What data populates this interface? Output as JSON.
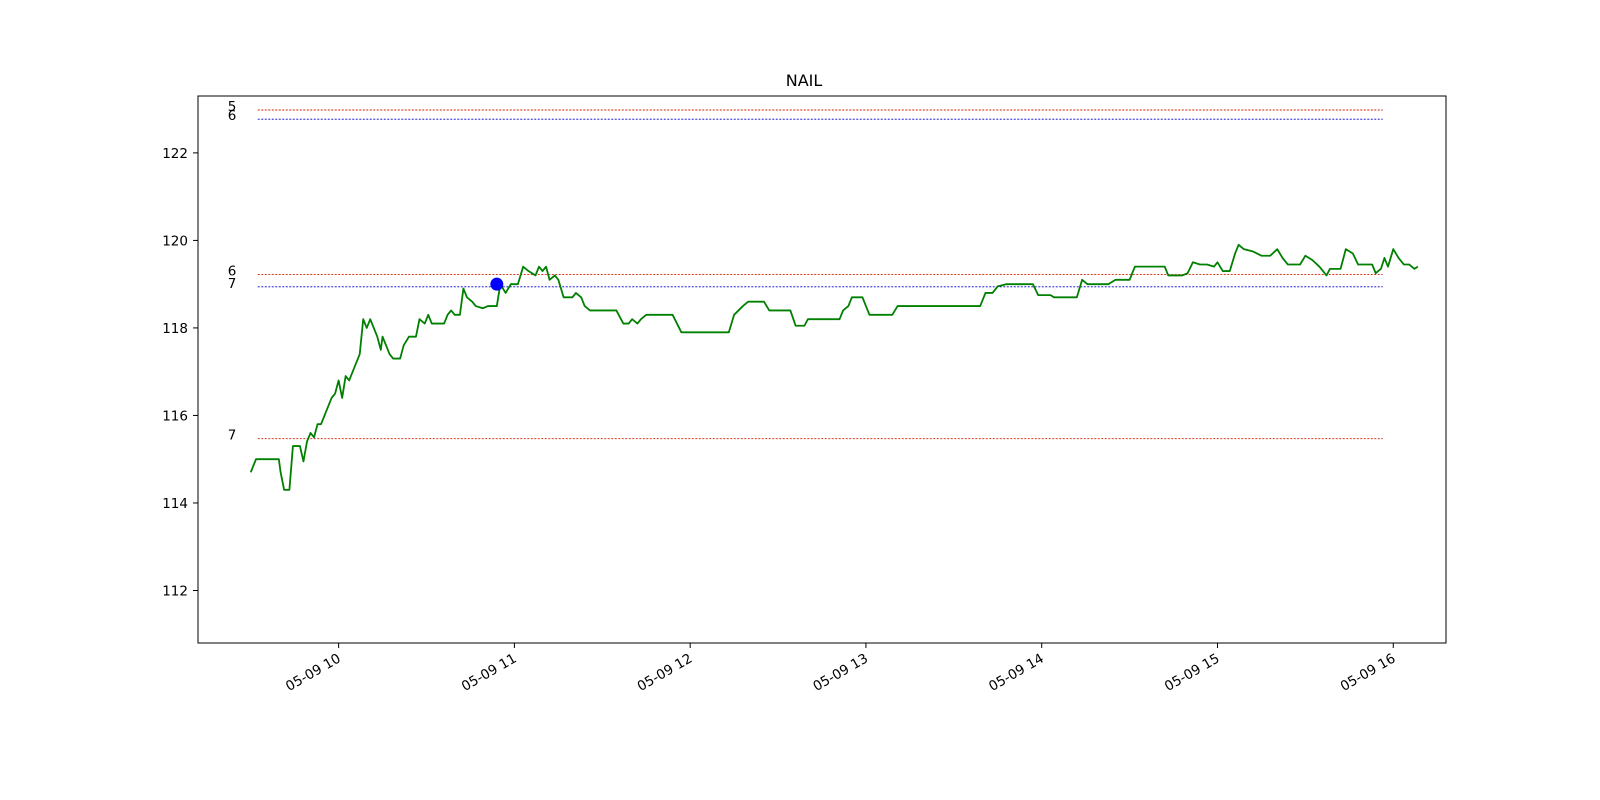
{
  "chart_data": {
    "type": "line",
    "title": "NAIL",
    "xlabel": "",
    "ylabel": "",
    "date": "05-09",
    "x_range_hours": [
      9.2,
      16.3
    ],
    "ylim": [
      110.8,
      123.3
    ],
    "yticks": [
      112,
      114,
      116,
      118,
      120,
      122
    ],
    "xticks": [
      {
        "hour": 10,
        "label": "05-09 10"
      },
      {
        "hour": 11,
        "label": "05-09 11"
      },
      {
        "hour": 12,
        "label": "05-09 12"
      },
      {
        "hour": 13,
        "label": "05-09 13"
      },
      {
        "hour": 14,
        "label": "05-09 14"
      },
      {
        "hour": 15,
        "label": "05-09 15"
      },
      {
        "hour": 16,
        "label": "05-09 16"
      }
    ],
    "grid": false,
    "series": [
      {
        "color": "#008000",
        "points": [
          [
            9.5,
            114.7
          ],
          [
            9.53,
            115.0
          ],
          [
            9.58,
            115.0
          ],
          [
            9.63,
            115.0
          ],
          [
            9.66,
            115.0
          ],
          [
            9.67,
            114.7
          ],
          [
            9.69,
            114.3
          ],
          [
            9.72,
            114.3
          ],
          [
            9.74,
            115.3
          ],
          [
            9.78,
            115.3
          ],
          [
            9.8,
            114.95
          ],
          [
            9.82,
            115.4
          ],
          [
            9.84,
            115.6
          ],
          [
            9.86,
            115.5
          ],
          [
            9.88,
            115.8
          ],
          [
            9.9,
            115.8
          ],
          [
            9.92,
            116.0
          ],
          [
            9.94,
            116.2
          ],
          [
            9.96,
            116.4
          ],
          [
            9.98,
            116.5
          ],
          [
            10.0,
            116.8
          ],
          [
            10.02,
            116.4
          ],
          [
            10.04,
            116.9
          ],
          [
            10.06,
            116.8
          ],
          [
            10.08,
            117.0
          ],
          [
            10.1,
            117.2
          ],
          [
            10.12,
            117.4
          ],
          [
            10.14,
            118.2
          ],
          [
            10.16,
            118.0
          ],
          [
            10.18,
            118.2
          ],
          [
            10.2,
            118.0
          ],
          [
            10.22,
            117.8
          ],
          [
            10.24,
            117.5
          ],
          [
            10.25,
            117.8
          ],
          [
            10.27,
            117.6
          ],
          [
            10.29,
            117.4
          ],
          [
            10.31,
            117.3
          ],
          [
            10.35,
            117.3
          ],
          [
            10.37,
            117.6
          ],
          [
            10.4,
            117.8
          ],
          [
            10.44,
            117.8
          ],
          [
            10.46,
            118.2
          ],
          [
            10.49,
            118.1
          ],
          [
            10.51,
            118.3
          ],
          [
            10.53,
            118.1
          ],
          [
            10.57,
            118.1
          ],
          [
            10.6,
            118.1
          ],
          [
            10.62,
            118.3
          ],
          [
            10.64,
            118.4
          ],
          [
            10.66,
            118.3
          ],
          [
            10.69,
            118.3
          ],
          [
            10.71,
            118.9
          ],
          [
            10.73,
            118.7
          ],
          [
            10.76,
            118.6
          ],
          [
            10.78,
            118.5
          ],
          [
            10.82,
            118.45
          ],
          [
            10.85,
            118.5
          ],
          [
            10.9,
            118.5
          ],
          [
            10.92,
            119.0
          ],
          [
            10.95,
            118.8
          ],
          [
            10.98,
            119.0
          ],
          [
            11.02,
            119.0
          ],
          [
            11.05,
            119.4
          ],
          [
            11.08,
            119.3
          ],
          [
            11.12,
            119.2
          ],
          [
            11.14,
            119.4
          ],
          [
            11.16,
            119.3
          ],
          [
            11.18,
            119.4
          ],
          [
            11.2,
            119.1
          ],
          [
            11.23,
            119.2
          ],
          [
            11.25,
            119.1
          ],
          [
            11.28,
            118.7
          ],
          [
            11.33,
            118.7
          ],
          [
            11.35,
            118.8
          ],
          [
            11.38,
            118.7
          ],
          [
            11.4,
            118.5
          ],
          [
            11.43,
            118.4
          ],
          [
            11.48,
            118.4
          ],
          [
            11.58,
            118.4
          ],
          [
            11.62,
            118.1
          ],
          [
            11.65,
            118.1
          ],
          [
            11.67,
            118.2
          ],
          [
            11.7,
            118.1
          ],
          [
            11.72,
            118.2
          ],
          [
            11.75,
            118.3
          ],
          [
            11.9,
            118.3
          ],
          [
            11.95,
            117.9
          ],
          [
            12.07,
            117.9
          ],
          [
            12.1,
            117.9
          ],
          [
            12.22,
            117.9
          ],
          [
            12.25,
            118.3
          ],
          [
            12.3,
            118.5
          ],
          [
            12.33,
            118.6
          ],
          [
            12.42,
            118.6
          ],
          [
            12.45,
            118.4
          ],
          [
            12.57,
            118.4
          ],
          [
            12.6,
            118.05
          ],
          [
            12.65,
            118.05
          ],
          [
            12.67,
            118.2
          ],
          [
            12.85,
            118.2
          ],
          [
            12.87,
            118.4
          ],
          [
            12.9,
            118.5
          ],
          [
            12.92,
            118.7
          ],
          [
            12.98,
            118.7
          ],
          [
            13.0,
            118.5
          ],
          [
            13.02,
            118.3
          ],
          [
            13.15,
            118.3
          ],
          [
            13.18,
            118.5
          ],
          [
            13.65,
            118.5
          ],
          [
            13.68,
            118.8
          ],
          [
            13.72,
            118.8
          ],
          [
            13.75,
            118.95
          ],
          [
            13.8,
            119.0
          ],
          [
            13.95,
            119.0
          ],
          [
            13.98,
            118.75
          ],
          [
            14.05,
            118.75
          ],
          [
            14.07,
            118.7
          ],
          [
            14.2,
            118.7
          ],
          [
            14.23,
            119.1
          ],
          [
            14.26,
            119.0
          ],
          [
            14.3,
            119.0
          ],
          [
            14.38,
            119.0
          ],
          [
            14.42,
            119.1
          ],
          [
            14.5,
            119.1
          ],
          [
            14.53,
            119.4
          ],
          [
            14.7,
            119.4
          ],
          [
            14.72,
            119.2
          ],
          [
            14.8,
            119.2
          ],
          [
            14.83,
            119.25
          ],
          [
            14.86,
            119.5
          ],
          [
            14.9,
            119.45
          ],
          [
            14.94,
            119.45
          ],
          [
            14.98,
            119.4
          ],
          [
            15.0,
            119.5
          ],
          [
            15.03,
            119.3
          ],
          [
            15.07,
            119.3
          ],
          [
            15.1,
            119.7
          ],
          [
            15.12,
            119.9
          ],
          [
            15.15,
            119.8
          ],
          [
            15.2,
            119.75
          ],
          [
            15.25,
            119.65
          ],
          [
            15.3,
            119.65
          ],
          [
            15.34,
            119.8
          ],
          [
            15.37,
            119.6
          ],
          [
            15.4,
            119.45
          ],
          [
            15.47,
            119.45
          ],
          [
            15.5,
            119.65
          ],
          [
            15.54,
            119.55
          ],
          [
            15.58,
            119.4
          ],
          [
            15.62,
            119.2
          ],
          [
            15.64,
            119.35
          ],
          [
            15.7,
            119.35
          ],
          [
            15.73,
            119.8
          ],
          [
            15.77,
            119.7
          ],
          [
            15.8,
            119.45
          ],
          [
            15.88,
            119.45
          ],
          [
            15.9,
            119.25
          ],
          [
            15.93,
            119.35
          ],
          [
            15.95,
            119.6
          ],
          [
            15.97,
            119.4
          ],
          [
            16.0,
            119.8
          ],
          [
            16.03,
            119.6
          ],
          [
            16.06,
            119.45
          ],
          [
            16.09,
            119.45
          ],
          [
            16.12,
            119.35
          ],
          [
            16.14,
            119.4
          ]
        ]
      }
    ],
    "marker": {
      "hour": 10.9,
      "value": 119.0,
      "color": "#0000ff"
    },
    "hlines": [
      {
        "value": 122.98,
        "color": "#cc2200",
        "label": "5"
      },
      {
        "value": 122.77,
        "color": "#0000cc",
        "label": "6"
      },
      {
        "value": 119.22,
        "color": "#cc2200",
        "label": "6"
      },
      {
        "value": 118.94,
        "color": "#0000cc",
        "label": "7"
      },
      {
        "value": 115.47,
        "color": "#cc2200",
        "label": "7"
      }
    ],
    "hline_x_range_hours": [
      9.54,
      15.94
    ]
  }
}
